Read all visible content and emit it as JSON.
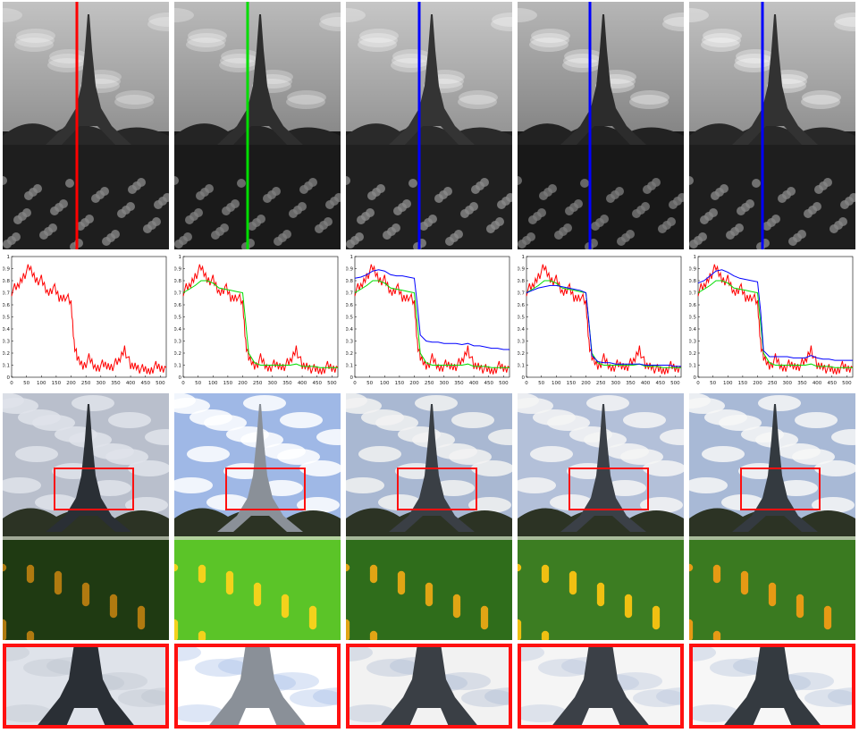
{
  "figure": {
    "columns": 5,
    "rows": [
      "grayscale-illumination-map",
      "intensity-profile-plot",
      "enhanced-color-image",
      "zoomed-crop"
    ]
  },
  "profile_plots": {
    "xticks": [
      "0",
      "50",
      "100",
      "150",
      "200",
      "250",
      "300",
      "350",
      "400",
      "450",
      "500"
    ],
    "yticks": [
      "0",
      "0.1",
      "0.2",
      "0.3",
      "0.4",
      "0.5",
      "0.6",
      "0.7",
      "0.8",
      "0.9",
      "1"
    ],
    "xlim": [
      0,
      520
    ],
    "ylim": [
      0,
      1
    ]
  },
  "columns": [
    {
      "id": "input",
      "profile_line_color": "#ff0000",
      "lightness": 0.55
    },
    {
      "id": "col2",
      "profile_line_color": "#00dd00",
      "lightness": 0.45
    },
    {
      "id": "col3",
      "profile_line_color": "#0000ff",
      "lightness": 0.6
    },
    {
      "id": "col4",
      "profile_line_color": "#0000ff",
      "lightness": 0.4
    },
    {
      "id": "col5",
      "profile_line_color": "#0000ff",
      "lightness": 0.55
    }
  ],
  "chart_data": [
    {
      "type": "line",
      "x": [
        0,
        20,
        40,
        60,
        80,
        100,
        120,
        140,
        160,
        180,
        200,
        210,
        220,
        240,
        260,
        280,
        300,
        320,
        340,
        360,
        380,
        400,
        420,
        440,
        460,
        480,
        500,
        520
      ],
      "series": [
        {
          "color": "#ff0000",
          "values": [
            0.72,
            0.74,
            0.85,
            0.9,
            0.82,
            0.8,
            0.7,
            0.75,
            0.65,
            0.68,
            0.6,
            0.3,
            0.15,
            0.1,
            0.15,
            0.08,
            0.1,
            0.09,
            0.1,
            0.12,
            0.25,
            0.08,
            0.1,
            0.06,
            0.05,
            0.09,
            0.07,
            0.08
          ]
        }
      ],
      "xlim": [
        0,
        520
      ],
      "ylim": [
        0,
        1
      ]
    },
    {
      "type": "line",
      "x": [
        0,
        20,
        40,
        60,
        80,
        100,
        120,
        140,
        160,
        180,
        200,
        210,
        220,
        240,
        260,
        280,
        300,
        320,
        340,
        360,
        380,
        400,
        420,
        440,
        460,
        480,
        500,
        520
      ],
      "series": [
        {
          "color": "#ff0000",
          "values": [
            0.72,
            0.74,
            0.85,
            0.9,
            0.82,
            0.8,
            0.7,
            0.75,
            0.65,
            0.68,
            0.6,
            0.3,
            0.15,
            0.1,
            0.15,
            0.08,
            0.1,
            0.09,
            0.1,
            0.12,
            0.25,
            0.08,
            0.1,
            0.06,
            0.05,
            0.09,
            0.07,
            0.08
          ]
        },
        {
          "color": "#00dd00",
          "values": [
            0.7,
            0.73,
            0.76,
            0.8,
            0.8,
            0.78,
            0.74,
            0.73,
            0.72,
            0.71,
            0.7,
            0.45,
            0.2,
            0.12,
            0.1,
            0.1,
            0.1,
            0.1,
            0.1,
            0.1,
            0.11,
            0.09,
            0.09,
            0.09,
            0.08,
            0.08,
            0.08,
            0.08
          ]
        }
      ],
      "xlim": [
        0,
        520
      ],
      "ylim": [
        0,
        1
      ]
    },
    {
      "type": "line",
      "x": [
        0,
        20,
        40,
        60,
        80,
        100,
        120,
        140,
        160,
        180,
        200,
        210,
        220,
        240,
        260,
        280,
        300,
        320,
        340,
        360,
        380,
        400,
        420,
        440,
        460,
        480,
        500,
        520
      ],
      "series": [
        {
          "color": "#ff0000",
          "values": [
            0.72,
            0.74,
            0.85,
            0.9,
            0.82,
            0.8,
            0.7,
            0.75,
            0.65,
            0.68,
            0.6,
            0.3,
            0.15,
            0.1,
            0.15,
            0.08,
            0.1,
            0.09,
            0.1,
            0.12,
            0.25,
            0.08,
            0.1,
            0.06,
            0.05,
            0.09,
            0.07,
            0.08
          ]
        },
        {
          "color": "#00dd00",
          "values": [
            0.7,
            0.73,
            0.76,
            0.8,
            0.8,
            0.78,
            0.74,
            0.73,
            0.72,
            0.71,
            0.7,
            0.45,
            0.2,
            0.12,
            0.1,
            0.1,
            0.1,
            0.1,
            0.1,
            0.1,
            0.11,
            0.09,
            0.09,
            0.09,
            0.08,
            0.08,
            0.08,
            0.08
          ]
        },
        {
          "color": "#0000ff",
          "values": [
            0.82,
            0.83,
            0.85,
            0.88,
            0.89,
            0.88,
            0.85,
            0.84,
            0.84,
            0.83,
            0.82,
            0.6,
            0.35,
            0.3,
            0.29,
            0.29,
            0.28,
            0.28,
            0.28,
            0.27,
            0.28,
            0.26,
            0.26,
            0.25,
            0.24,
            0.24,
            0.23,
            0.23
          ]
        }
      ],
      "xlim": [
        0,
        520
      ],
      "ylim": [
        0,
        1
      ]
    },
    {
      "type": "line",
      "x": [
        0,
        20,
        40,
        60,
        80,
        100,
        120,
        140,
        160,
        180,
        200,
        210,
        220,
        240,
        260,
        280,
        300,
        320,
        340,
        360,
        380,
        400,
        420,
        440,
        460,
        480,
        500,
        520
      ],
      "series": [
        {
          "color": "#ff0000",
          "values": [
            0.72,
            0.74,
            0.85,
            0.9,
            0.82,
            0.8,
            0.7,
            0.75,
            0.65,
            0.68,
            0.6,
            0.3,
            0.15,
            0.1,
            0.15,
            0.08,
            0.1,
            0.09,
            0.1,
            0.12,
            0.25,
            0.08,
            0.1,
            0.06,
            0.05,
            0.09,
            0.07,
            0.08
          ]
        },
        {
          "color": "#00dd00",
          "values": [
            0.7,
            0.73,
            0.76,
            0.8,
            0.8,
            0.78,
            0.74,
            0.73,
            0.72,
            0.71,
            0.7,
            0.45,
            0.2,
            0.12,
            0.1,
            0.1,
            0.1,
            0.1,
            0.1,
            0.1,
            0.11,
            0.09,
            0.09,
            0.09,
            0.08,
            0.08,
            0.08,
            0.08
          ]
        },
        {
          "color": "#0000ff",
          "values": [
            0.7,
            0.72,
            0.74,
            0.75,
            0.76,
            0.76,
            0.75,
            0.74,
            0.73,
            0.72,
            0.7,
            0.45,
            0.18,
            0.13,
            0.12,
            0.12,
            0.11,
            0.11,
            0.11,
            0.11,
            0.11,
            0.1,
            0.1,
            0.1,
            0.1,
            0.1,
            0.09,
            0.09
          ]
        }
      ],
      "xlim": [
        0,
        520
      ],
      "ylim": [
        0,
        1
      ]
    },
    {
      "type": "line",
      "x": [
        0,
        20,
        40,
        60,
        80,
        100,
        120,
        140,
        160,
        180,
        200,
        210,
        220,
        240,
        260,
        280,
        300,
        320,
        340,
        360,
        380,
        400,
        420,
        440,
        460,
        480,
        500,
        520
      ],
      "series": [
        {
          "color": "#ff0000",
          "values": [
            0.72,
            0.74,
            0.85,
            0.9,
            0.82,
            0.8,
            0.7,
            0.75,
            0.65,
            0.68,
            0.6,
            0.3,
            0.15,
            0.1,
            0.15,
            0.08,
            0.1,
            0.09,
            0.1,
            0.12,
            0.25,
            0.08,
            0.1,
            0.06,
            0.05,
            0.09,
            0.07,
            0.08
          ]
        },
        {
          "color": "#00dd00",
          "values": [
            0.7,
            0.73,
            0.76,
            0.8,
            0.8,
            0.78,
            0.74,
            0.73,
            0.72,
            0.71,
            0.7,
            0.45,
            0.2,
            0.12,
            0.1,
            0.1,
            0.1,
            0.1,
            0.1,
            0.1,
            0.11,
            0.09,
            0.09,
            0.09,
            0.08,
            0.08,
            0.08,
            0.08
          ]
        },
        {
          "color": "#0000ff",
          "values": [
            0.78,
            0.8,
            0.84,
            0.88,
            0.89,
            0.87,
            0.84,
            0.82,
            0.81,
            0.8,
            0.79,
            0.55,
            0.22,
            0.17,
            0.17,
            0.17,
            0.17,
            0.16,
            0.16,
            0.16,
            0.18,
            0.16,
            0.15,
            0.15,
            0.14,
            0.14,
            0.14,
            0.14
          ]
        }
      ],
      "xlim": [
        0,
        520
      ],
      "ylim": [
        0,
        1
      ]
    }
  ]
}
